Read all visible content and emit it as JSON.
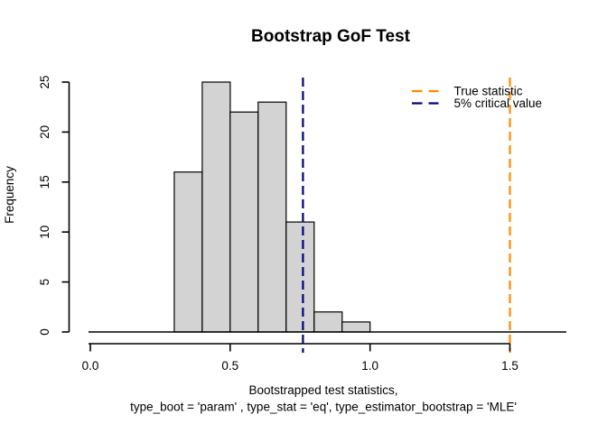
{
  "chart_data": {
    "type": "bar",
    "subtype": "histogram",
    "title": "Bootstrap GoF Test",
    "ylabel": "Frequency",
    "xlabel_lines": [
      "Bootstrapped test statistics,",
      "type_boot = 'param' , type_stat = 'eq', type_estimator_bootstrap = 'MLE'"
    ],
    "bin_edges": [
      0.3,
      0.4,
      0.5,
      0.6,
      0.7,
      0.8,
      0.9,
      1.0
    ],
    "values": [
      16,
      25,
      22,
      23,
      11,
      2,
      1
    ],
    "x_ticks": [
      "0.0",
      "0.5",
      "1.0",
      "1.5"
    ],
    "x_tick_values": [
      0,
      0.5,
      1.0,
      1.5
    ],
    "y_ticks": [
      "0",
      "5",
      "10",
      "15",
      "20",
      "25"
    ],
    "y_tick_values": [
      0,
      5,
      10,
      15,
      20,
      25
    ],
    "xlim": [
      0,
      1.71
    ],
    "ylim": [
      0,
      26
    ],
    "grid": false,
    "legend_position": "topright",
    "vlines": [
      {
        "label": "True statistic",
        "value": 1.5,
        "color": "#FF8C00",
        "style": "dashed"
      },
      {
        "label": "5% critical value",
        "value": 0.76,
        "color": "#000080",
        "style": "dashed"
      }
    ],
    "bar_fill": "#D3D3D3",
    "bar_border": "#000000",
    "axis_color": "#000000"
  }
}
